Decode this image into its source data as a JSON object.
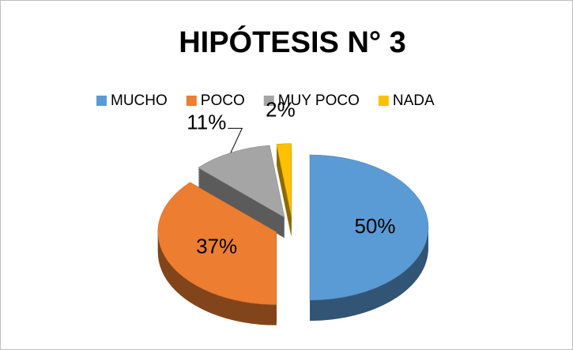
{
  "chart_data": {
    "type": "pie",
    "title": "HIPÓTESIS N° 3",
    "categories": [
      "MUCHO",
      "POCO",
      "MUY POCO",
      "NADA"
    ],
    "values": [
      50,
      37,
      11,
      2
    ],
    "value_labels": [
      "50%",
      "37%",
      "11%",
      "2%"
    ],
    "colors": [
      "#5b9bd5",
      "#ed7d31",
      "#a5a5a5",
      "#ffc000"
    ],
    "legend": "top"
  }
}
